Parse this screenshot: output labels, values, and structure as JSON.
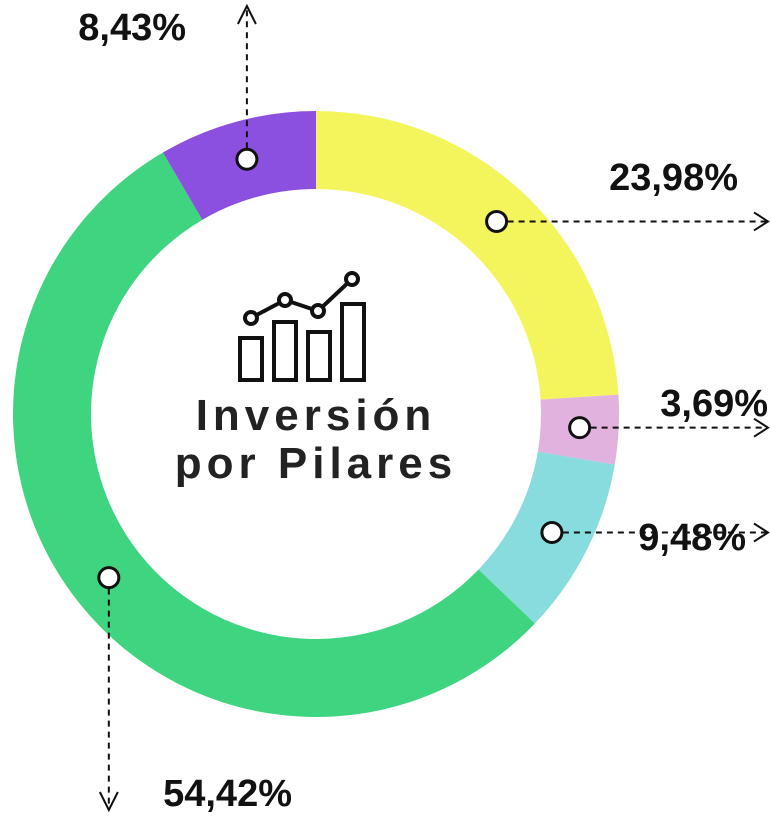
{
  "chart_data": {
    "type": "pie",
    "title": "Inversión por Pilares",
    "categories": [
      null,
      null,
      null,
      null,
      null
    ],
    "values": [
      23.98,
      3.69,
      9.48,
      54.42,
      8.43
    ],
    "value_labels": [
      "23,98%",
      "3,69%",
      "9,48%",
      "54,42%",
      "8,43%"
    ],
    "colors": [
      "#f4f55c",
      "#e2b2df",
      "#88dcdd",
      "#3ed480",
      "#8b50e0"
    ]
  }
}
